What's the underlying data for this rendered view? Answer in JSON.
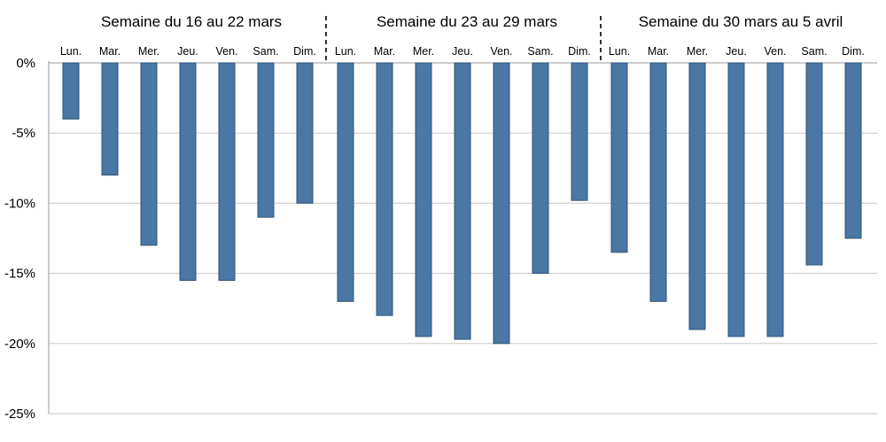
{
  "chart_data": {
    "type": "bar",
    "title": "",
    "xlabel": "",
    "ylabel": "",
    "ylim": [
      -25,
      0
    ],
    "yticks": [
      0,
      -5,
      -10,
      -15,
      -20,
      -25
    ],
    "ytick_labels": [
      "0%",
      "-5%",
      "-10%",
      "-15%",
      "-20%",
      "-25%"
    ],
    "grid": true,
    "legend": "none",
    "bar_color": "#4a77a3",
    "weeks": [
      {
        "label": "Semaine du 16 au 22 mars",
        "days": [
          "Lun.",
          "Mar.",
          "Mer.",
          "Jeu.",
          "Ven.",
          "Sam.",
          "Dim."
        ],
        "values": [
          -4,
          -8,
          -13,
          -15.5,
          -15.5,
          -11,
          -10
        ]
      },
      {
        "label": "Semaine du 23 au 29 mars",
        "days": [
          "Lun.",
          "Mar.",
          "Mer.",
          "Jeu.",
          "Ven.",
          "Sam.",
          "Dim."
        ],
        "values": [
          -17,
          -18,
          -19.5,
          -19.7,
          -20,
          -15,
          -9.8
        ]
      },
      {
        "label": "Semaine du 30 mars au 5 avril",
        "days": [
          "Lun.",
          "Mar.",
          "Mer.",
          "Jeu.",
          "Ven.",
          "Sam.",
          "Dim."
        ],
        "values": [
          -13.5,
          -17,
          -19,
          -19.5,
          -19.5,
          -14.4,
          -12.5
        ]
      }
    ]
  }
}
